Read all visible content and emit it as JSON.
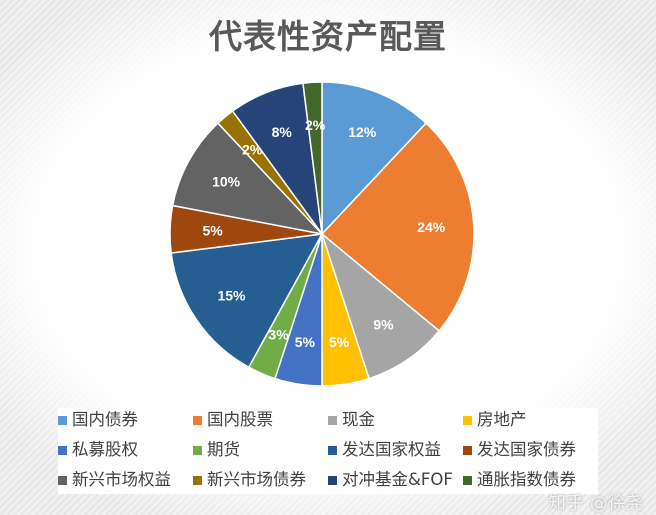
{
  "chart_data": {
    "type": "pie",
    "title": "代表性资产配置",
    "start": "top",
    "direction": "clockwise",
    "legend_position": "bottom",
    "categories": [
      "国内债券",
      "国内股票",
      "现金",
      "房地产",
      "私募股权",
      "期货",
      "发达国家权益",
      "发达国家债券",
      "新兴市场权益",
      "新兴市场债券",
      "对冲基金&FOF",
      "通胀指数债券"
    ],
    "values": [
      12,
      24,
      9,
      5,
      5,
      3,
      15,
      5,
      10,
      2,
      8,
      2
    ],
    "labels": [
      "12%",
      "24%",
      "9%",
      "5%",
      "5%",
      "3%",
      "15%",
      "5%",
      "10%",
      "2%",
      "8%",
      "2%"
    ],
    "colors": [
      "#5B9BD5",
      "#ED7D31",
      "#A5A5A5",
      "#FFC000",
      "#4472C4",
      "#70AD47",
      "#255E91",
      "#9E480E",
      "#636363",
      "#997300",
      "#264478",
      "#43682B"
    ]
  },
  "watermark": "知乎 @徐尧"
}
